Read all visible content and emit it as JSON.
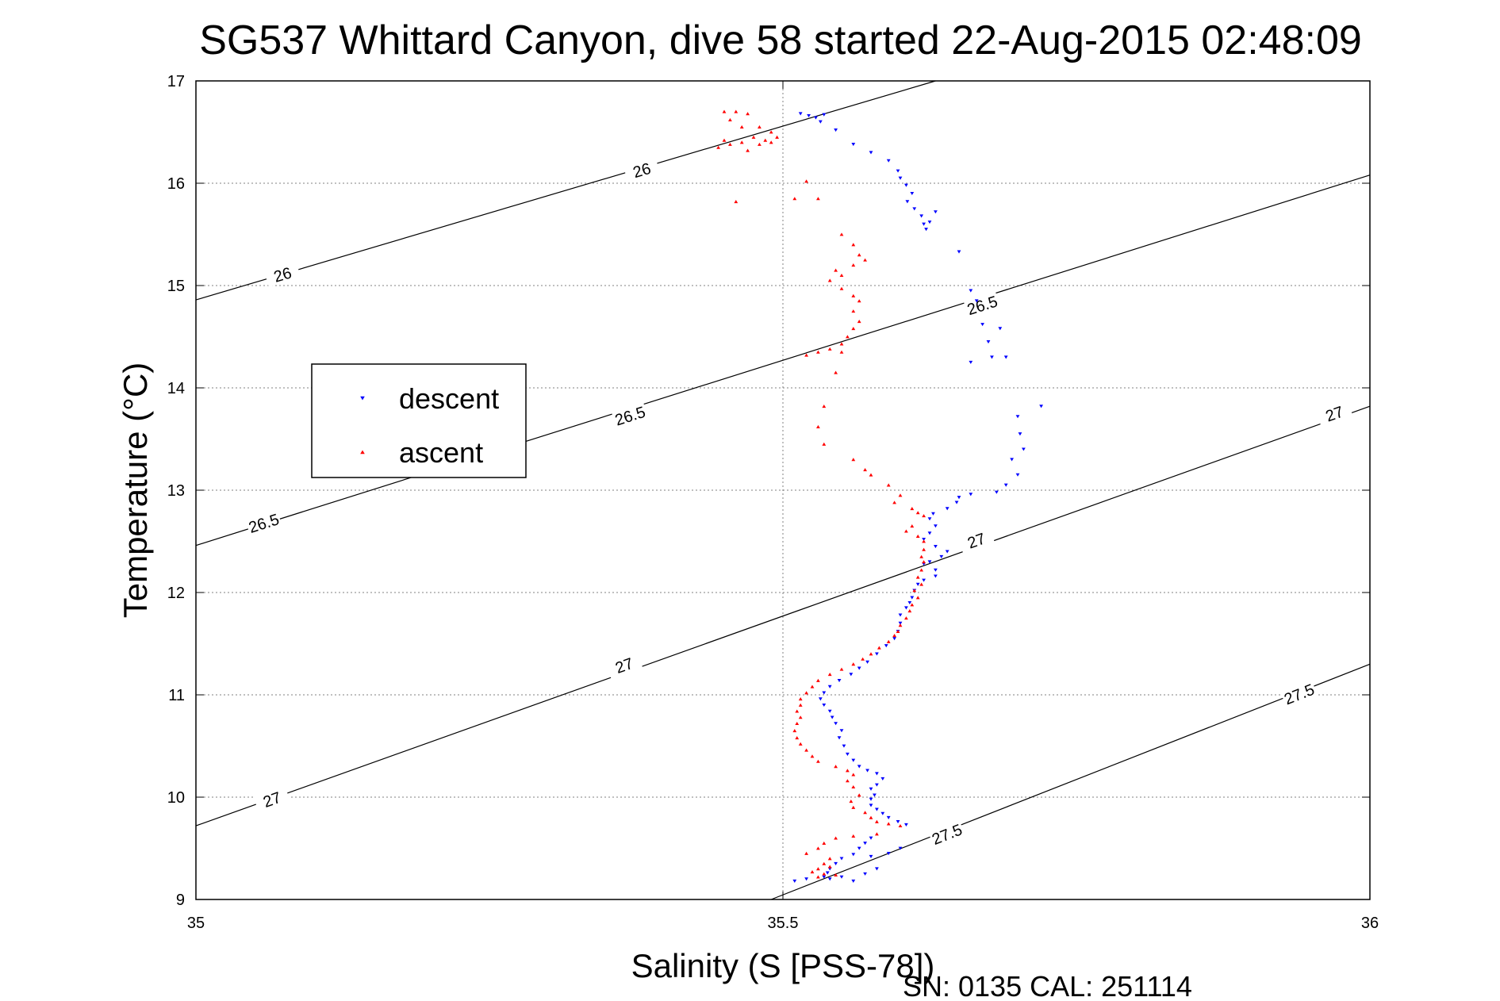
{
  "chart_data": {
    "type": "scatter",
    "title": "SG537 Whittard Canyon, dive 58 started 22-Aug-2015 02:48:09",
    "xlabel": "Salinity (S [PSS-78])",
    "ylabel": "Temperature (°C)",
    "xlim": [
      35,
      36
    ],
    "ylim": [
      9,
      17
    ],
    "x_ticks": [
      "35",
      "35.5",
      "36"
    ],
    "y_ticks": [
      "9",
      "10",
      "11",
      "12",
      "13",
      "14",
      "15",
      "16",
      "17"
    ],
    "grid": true,
    "legend_position": "left",
    "footer": "SN: 0135  CAL: 251114",
    "colors": {
      "descent": "#0000ff",
      "ascent": "#ff0000",
      "contour": "#000000"
    },
    "contours": [
      {
        "level": "26",
        "points": [
          [
            35.0,
            14.86
          ],
          [
            35.63,
            17.0
          ]
        ],
        "labels": [
          [
            35.074,
            15.1
          ],
          [
            35.38,
            16.12
          ]
        ]
      },
      {
        "level": "26.5",
        "points": [
          [
            35.0,
            12.46
          ],
          [
            36.0,
            16.08
          ]
        ],
        "labels": [
          [
            35.058,
            12.67
          ],
          [
            35.37,
            13.72
          ],
          [
            35.67,
            14.8
          ]
        ]
      },
      {
        "level": "27",
        "points": [
          [
            35.0,
            9.72
          ],
          [
            36.0,
            13.82
          ]
        ],
        "labels": [
          [
            35.065,
            9.97
          ],
          [
            35.365,
            11.28
          ],
          [
            35.665,
            12.5
          ],
          [
            35.97,
            13.74
          ]
        ]
      },
      {
        "level": "27.5",
        "points": [
          [
            35.49,
            9.0
          ],
          [
            36.0,
            11.3
          ]
        ],
        "labels": [
          [
            35.64,
            9.63
          ],
          [
            35.94,
            11.0
          ]
        ]
      }
    ],
    "series": [
      {
        "name": "descent",
        "marker": "triangle-down",
        "points": [
          [
            35.515,
            16.68
          ],
          [
            35.522,
            16.66
          ],
          [
            35.535,
            16.67
          ],
          [
            35.528,
            16.64
          ],
          [
            35.532,
            16.6
          ],
          [
            35.545,
            16.52
          ],
          [
            35.56,
            16.38
          ],
          [
            35.575,
            16.3
          ],
          [
            35.59,
            16.22
          ],
          [
            35.598,
            16.12
          ],
          [
            35.6,
            16.05
          ],
          [
            35.605,
            15.98
          ],
          [
            35.61,
            15.9
          ],
          [
            35.606,
            15.82
          ],
          [
            35.612,
            15.75
          ],
          [
            35.618,
            15.68
          ],
          [
            35.62,
            15.6
          ],
          [
            35.622,
            15.55
          ],
          [
            35.63,
            15.72
          ],
          [
            35.625,
            15.62
          ],
          [
            35.65,
            15.33
          ],
          [
            35.66,
            14.95
          ],
          [
            35.665,
            14.85
          ],
          [
            35.67,
            14.62
          ],
          [
            35.675,
            14.45
          ],
          [
            35.66,
            14.25
          ],
          [
            35.678,
            14.3
          ],
          [
            35.685,
            14.58
          ],
          [
            35.69,
            14.3
          ],
          [
            35.72,
            13.82
          ],
          [
            35.7,
            13.72
          ],
          [
            35.702,
            13.55
          ],
          [
            35.705,
            13.4
          ],
          [
            35.695,
            13.3
          ],
          [
            35.7,
            13.15
          ],
          [
            35.69,
            13.05
          ],
          [
            35.682,
            12.98
          ],
          [
            35.66,
            12.96
          ],
          [
            35.65,
            12.93
          ],
          [
            35.648,
            12.88
          ],
          [
            35.64,
            12.82
          ],
          [
            35.628,
            12.77
          ],
          [
            35.625,
            12.72
          ],
          [
            35.63,
            12.65
          ],
          [
            35.625,
            12.58
          ],
          [
            35.62,
            12.52
          ],
          [
            35.63,
            12.45
          ],
          [
            35.64,
            12.4
          ],
          [
            35.635,
            12.35
          ],
          [
            35.625,
            12.3
          ],
          [
            35.62,
            12.28
          ],
          [
            35.63,
            12.22
          ],
          [
            35.63,
            12.16
          ],
          [
            35.62,
            12.12
          ],
          [
            35.615,
            12.08
          ],
          [
            35.612,
            12.02
          ],
          [
            35.61,
            11.95
          ],
          [
            35.608,
            11.9
          ],
          [
            35.605,
            11.85
          ],
          [
            35.6,
            11.78
          ],
          [
            35.6,
            11.7
          ],
          [
            35.598,
            11.62
          ],
          [
            35.595,
            11.55
          ],
          [
            35.588,
            11.48
          ],
          [
            35.58,
            11.4
          ],
          [
            35.572,
            11.32
          ],
          [
            35.565,
            11.26
          ],
          [
            35.558,
            11.2
          ],
          [
            35.548,
            11.14
          ],
          [
            35.54,
            11.08
          ],
          [
            35.535,
            11.02
          ],
          [
            35.532,
            10.96
          ],
          [
            35.535,
            10.9
          ],
          [
            35.54,
            10.84
          ],
          [
            35.542,
            10.78
          ],
          [
            35.545,
            10.72
          ],
          [
            35.55,
            10.65
          ],
          [
            35.548,
            10.58
          ],
          [
            35.552,
            10.5
          ],
          [
            35.555,
            10.42
          ],
          [
            35.56,
            10.36
          ],
          [
            35.565,
            10.3
          ],
          [
            35.572,
            10.26
          ],
          [
            35.58,
            10.23
          ],
          [
            35.585,
            10.18
          ],
          [
            35.58,
            10.12
          ],
          [
            35.575,
            10.08
          ],
          [
            35.578,
            10.02
          ],
          [
            35.575,
            9.98
          ],
          [
            35.575,
            9.92
          ],
          [
            35.58,
            9.88
          ],
          [
            35.585,
            9.84
          ],
          [
            35.59,
            9.8
          ],
          [
            35.598,
            9.76
          ],
          [
            35.605,
            9.73
          ],
          [
            35.575,
            9.6
          ],
          [
            35.57,
            9.55
          ],
          [
            35.565,
            9.5
          ],
          [
            35.56,
            9.44
          ],
          [
            35.575,
            9.42
          ],
          [
            35.55,
            9.4
          ],
          [
            35.545,
            9.35
          ],
          [
            35.54,
            9.3
          ],
          [
            35.538,
            9.26
          ],
          [
            35.535,
            9.22
          ],
          [
            35.54,
            9.2
          ],
          [
            35.55,
            9.22
          ],
          [
            35.56,
            9.18
          ],
          [
            35.57,
            9.25
          ],
          [
            35.58,
            9.3
          ],
          [
            35.52,
            9.2
          ],
          [
            35.51,
            9.18
          ],
          [
            35.6,
            9.5
          ],
          [
            35.59,
            9.45
          ]
        ]
      },
      {
        "name": "ascent",
        "marker": "triangle-up",
        "points": [
          [
            35.45,
            16.7
          ],
          [
            35.46,
            16.7
          ],
          [
            35.47,
            16.68
          ],
          [
            35.455,
            16.62
          ],
          [
            35.465,
            16.55
          ],
          [
            35.48,
            16.55
          ],
          [
            35.49,
            16.5
          ],
          [
            35.475,
            16.45
          ],
          [
            35.485,
            16.42
          ],
          [
            35.48,
            16.38
          ],
          [
            35.465,
            16.4
          ],
          [
            35.455,
            16.38
          ],
          [
            35.445,
            16.35
          ],
          [
            35.47,
            16.32
          ],
          [
            35.45,
            16.42
          ],
          [
            35.495,
            16.45
          ],
          [
            35.49,
            16.4
          ],
          [
            35.52,
            16.02
          ],
          [
            35.51,
            15.85
          ],
          [
            35.46,
            15.82
          ],
          [
            35.53,
            15.85
          ],
          [
            35.55,
            15.5
          ],
          [
            35.56,
            15.4
          ],
          [
            35.565,
            15.3
          ],
          [
            35.57,
            15.25
          ],
          [
            35.56,
            15.2
          ],
          [
            35.545,
            15.15
          ],
          [
            35.55,
            15.1
          ],
          [
            35.54,
            15.05
          ],
          [
            35.55,
            14.97
          ],
          [
            35.56,
            14.9
          ],
          [
            35.565,
            14.85
          ],
          [
            35.56,
            14.75
          ],
          [
            35.565,
            14.65
          ],
          [
            35.56,
            14.58
          ],
          [
            35.555,
            14.5
          ],
          [
            35.55,
            14.43
          ],
          [
            35.54,
            14.38
          ],
          [
            35.53,
            14.35
          ],
          [
            35.52,
            14.32
          ],
          [
            35.55,
            14.35
          ],
          [
            35.545,
            14.15
          ],
          [
            35.535,
            13.82
          ],
          [
            35.53,
            13.62
          ],
          [
            35.535,
            13.45
          ],
          [
            35.56,
            13.3
          ],
          [
            35.57,
            13.2
          ],
          [
            35.575,
            13.15
          ],
          [
            35.59,
            13.05
          ],
          [
            35.6,
            12.95
          ],
          [
            35.595,
            12.88
          ],
          [
            35.61,
            12.82
          ],
          [
            35.615,
            12.78
          ],
          [
            35.62,
            12.75
          ],
          [
            35.61,
            12.65
          ],
          [
            35.605,
            12.6
          ],
          [
            35.615,
            12.55
          ],
          [
            35.62,
            12.5
          ],
          [
            35.62,
            12.42
          ],
          [
            35.618,
            12.35
          ],
          [
            35.62,
            12.3
          ],
          [
            35.618,
            12.22
          ],
          [
            35.615,
            12.15
          ],
          [
            35.618,
            12.08
          ],
          [
            35.612,
            12.02
          ],
          [
            35.615,
            11.95
          ],
          [
            35.61,
            11.88
          ],
          [
            35.608,
            11.82
          ],
          [
            35.605,
            11.75
          ],
          [
            35.6,
            11.68
          ],
          [
            35.598,
            11.62
          ],
          [
            35.595,
            11.58
          ],
          [
            35.59,
            11.52
          ],
          [
            35.582,
            11.46
          ],
          [
            35.575,
            11.4
          ],
          [
            35.568,
            11.35
          ],
          [
            35.56,
            11.3
          ],
          [
            35.55,
            11.25
          ],
          [
            35.54,
            11.2
          ],
          [
            35.53,
            11.14
          ],
          [
            35.525,
            11.08
          ],
          [
            35.52,
            11.02
          ],
          [
            35.515,
            10.96
          ],
          [
            35.515,
            10.9
          ],
          [
            35.512,
            10.84
          ],
          [
            35.515,
            10.78
          ],
          [
            35.512,
            10.72
          ],
          [
            35.51,
            10.65
          ],
          [
            35.512,
            10.58
          ],
          [
            35.515,
            10.52
          ],
          [
            35.52,
            10.46
          ],
          [
            35.525,
            10.4
          ],
          [
            35.53,
            10.35
          ],
          [
            35.545,
            10.3
          ],
          [
            35.555,
            10.26
          ],
          [
            35.56,
            10.22
          ],
          [
            35.555,
            10.16
          ],
          [
            35.56,
            10.1
          ],
          [
            35.565,
            10.02
          ],
          [
            35.558,
            9.96
          ],
          [
            35.56,
            9.9
          ],
          [
            35.57,
            9.85
          ],
          [
            35.575,
            9.8
          ],
          [
            35.58,
            9.76
          ],
          [
            35.59,
            9.74
          ],
          [
            35.6,
            9.72
          ],
          [
            35.545,
            9.6
          ],
          [
            35.535,
            9.55
          ],
          [
            35.53,
            9.5
          ],
          [
            35.52,
            9.45
          ],
          [
            35.54,
            9.4
          ],
          [
            35.535,
            9.35
          ],
          [
            35.53,
            9.3
          ],
          [
            35.525,
            9.27
          ],
          [
            35.535,
            9.25
          ],
          [
            35.53,
            9.22
          ],
          [
            35.545,
            9.24
          ],
          [
            35.54,
            9.32
          ],
          [
            35.56,
            9.62
          ],
          [
            35.58,
            9.64
          ]
        ]
      }
    ]
  }
}
